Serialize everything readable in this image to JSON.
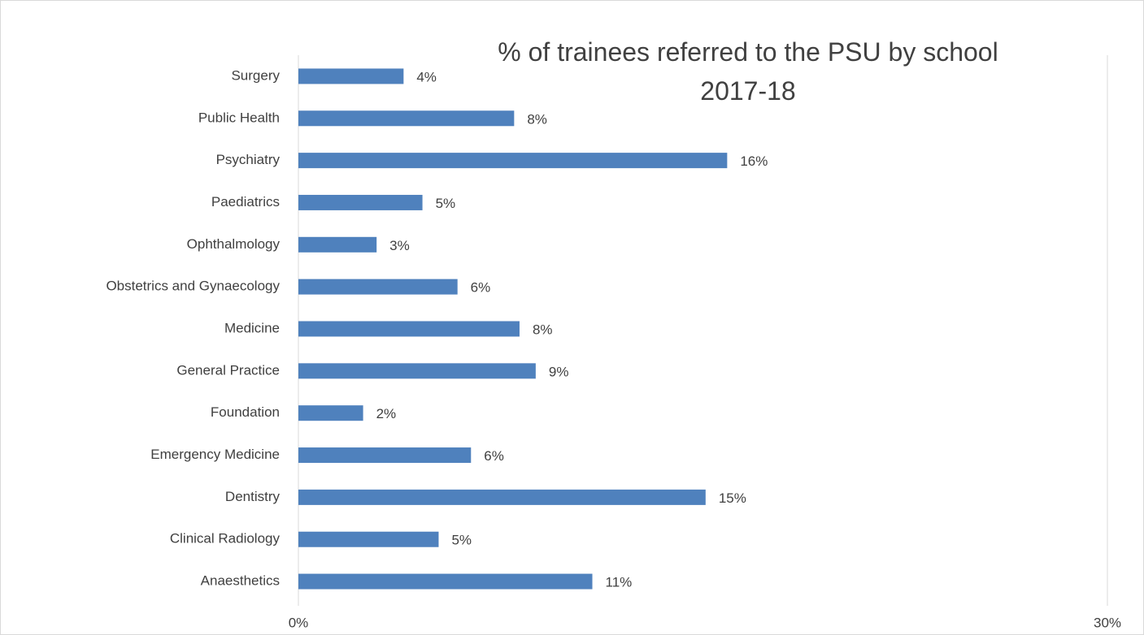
{
  "chart_data": {
    "type": "bar",
    "orientation": "horizontal",
    "title": "% of trainees referred to the PSU by school 2017-18",
    "categories": [
      "Surgery",
      "Public Health",
      "Psychiatry",
      "Paediatrics",
      "Ophthalmology",
      "Obstetrics and Gynaecology",
      "Medicine",
      "General Practice",
      "Foundation",
      "Emergency Medicine",
      "Dentistry",
      "Clinical Radiology",
      "Anaesthetics"
    ],
    "values": [
      3.9,
      8.0,
      15.9,
      4.6,
      2.9,
      5.9,
      8.2,
      8.8,
      2.4,
      6.4,
      15.1,
      5.2,
      10.9
    ],
    "value_labels": [
      "4%",
      "8%",
      "16%",
      "5%",
      "3%",
      "6%",
      "8%",
      "9%",
      "2%",
      "6%",
      "15%",
      "5%",
      "11%"
    ],
    "color": "#4f81bd",
    "xlim": [
      0,
      30
    ],
    "xticks": [
      {
        "value": 0,
        "label": "0%"
      },
      {
        "value": 30,
        "label": "30%"
      }
    ],
    "grid": true
  }
}
